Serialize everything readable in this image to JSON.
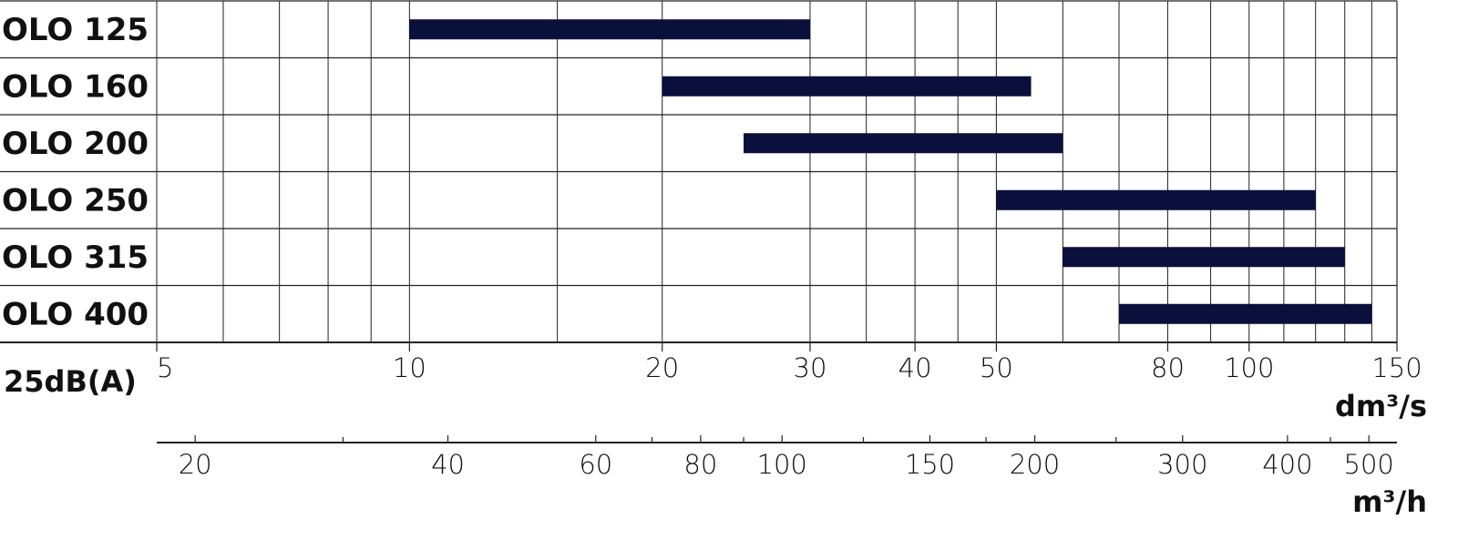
{
  "chart_data": {
    "type": "range-bar",
    "categories": [
      "OLO 125",
      "OLO 160",
      "OLO 200",
      "OLO 250",
      "OLO 315",
      "OLO 400"
    ],
    "start": [
      10,
      20,
      25,
      50,
      60,
      70
    ],
    "end": [
      30,
      55,
      60,
      120,
      130,
      140
    ],
    "color": "#0a0f3c",
    "xscale": "log",
    "xlim": [
      5,
      150
    ],
    "xticks": [
      5,
      10,
      20,
      30,
      40,
      50,
      80,
      100,
      150
    ],
    "xgrid": [
      5,
      6,
      7,
      8,
      9,
      10,
      15,
      20,
      30,
      35,
      40,
      45,
      50,
      60,
      70,
      80,
      90,
      100,
      110,
      120,
      130,
      140,
      150
    ],
    "xlabel": "dm³/s",
    "condition_label": "25dB(A)",
    "x2lim": [
      18,
      540
    ],
    "x2ticks": [
      20,
      40,
      60,
      80,
      100,
      150,
      200,
      300,
      400,
      500
    ],
    "x2minor": [
      30,
      70,
      90,
      125,
      175,
      250,
      450
    ],
    "x2label": "m³/h"
  }
}
